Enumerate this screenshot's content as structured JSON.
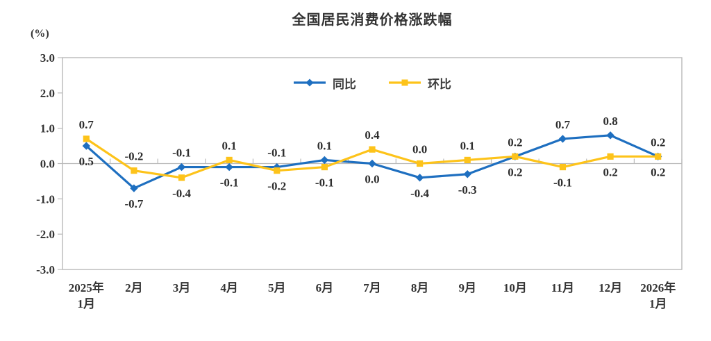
{
  "chart_data": {
    "type": "line",
    "title": "全国居民消费价格涨跌幅",
    "y_axis_unit": "(%)",
    "categories": [
      [
        "2025年",
        "1月"
      ],
      [
        "2月"
      ],
      [
        "3月"
      ],
      [
        "4月"
      ],
      [
        "5月"
      ],
      [
        "6月"
      ],
      [
        "7月"
      ],
      [
        "8月"
      ],
      [
        "9月"
      ],
      [
        "10月"
      ],
      [
        "11月"
      ],
      [
        "12月"
      ],
      [
        "2026年",
        "1月"
      ]
    ],
    "series": [
      {
        "name": "同比",
        "color": "#1e6fc0",
        "marker": "diamond",
        "values": [
          0.5,
          -0.7,
          -0.1,
          -0.1,
          -0.1,
          0.1,
          0.0,
          -0.4,
          -0.3,
          0.2,
          0.7,
          0.8,
          0.2
        ]
      },
      {
        "name": "环比",
        "color": "#fdc31a",
        "marker": "square",
        "values": [
          0.7,
          -0.2,
          -0.4,
          0.1,
          -0.2,
          -0.1,
          0.4,
          0.0,
          0.1,
          0.2,
          -0.1,
          0.2,
          0.2
        ]
      }
    ],
    "ylim": [
      -3.0,
      3.0
    ],
    "y_tick_labels": [
      "3.0",
      "2.0",
      "1.0",
      "0.0",
      "-1.0",
      "-2.0",
      "-3.0"
    ],
    "grid": "zero-line-only",
    "legend_position": "top-center",
    "data_labels": true,
    "axis_color": "#b9b9b9",
    "label_color": "#2e2e2e"
  }
}
